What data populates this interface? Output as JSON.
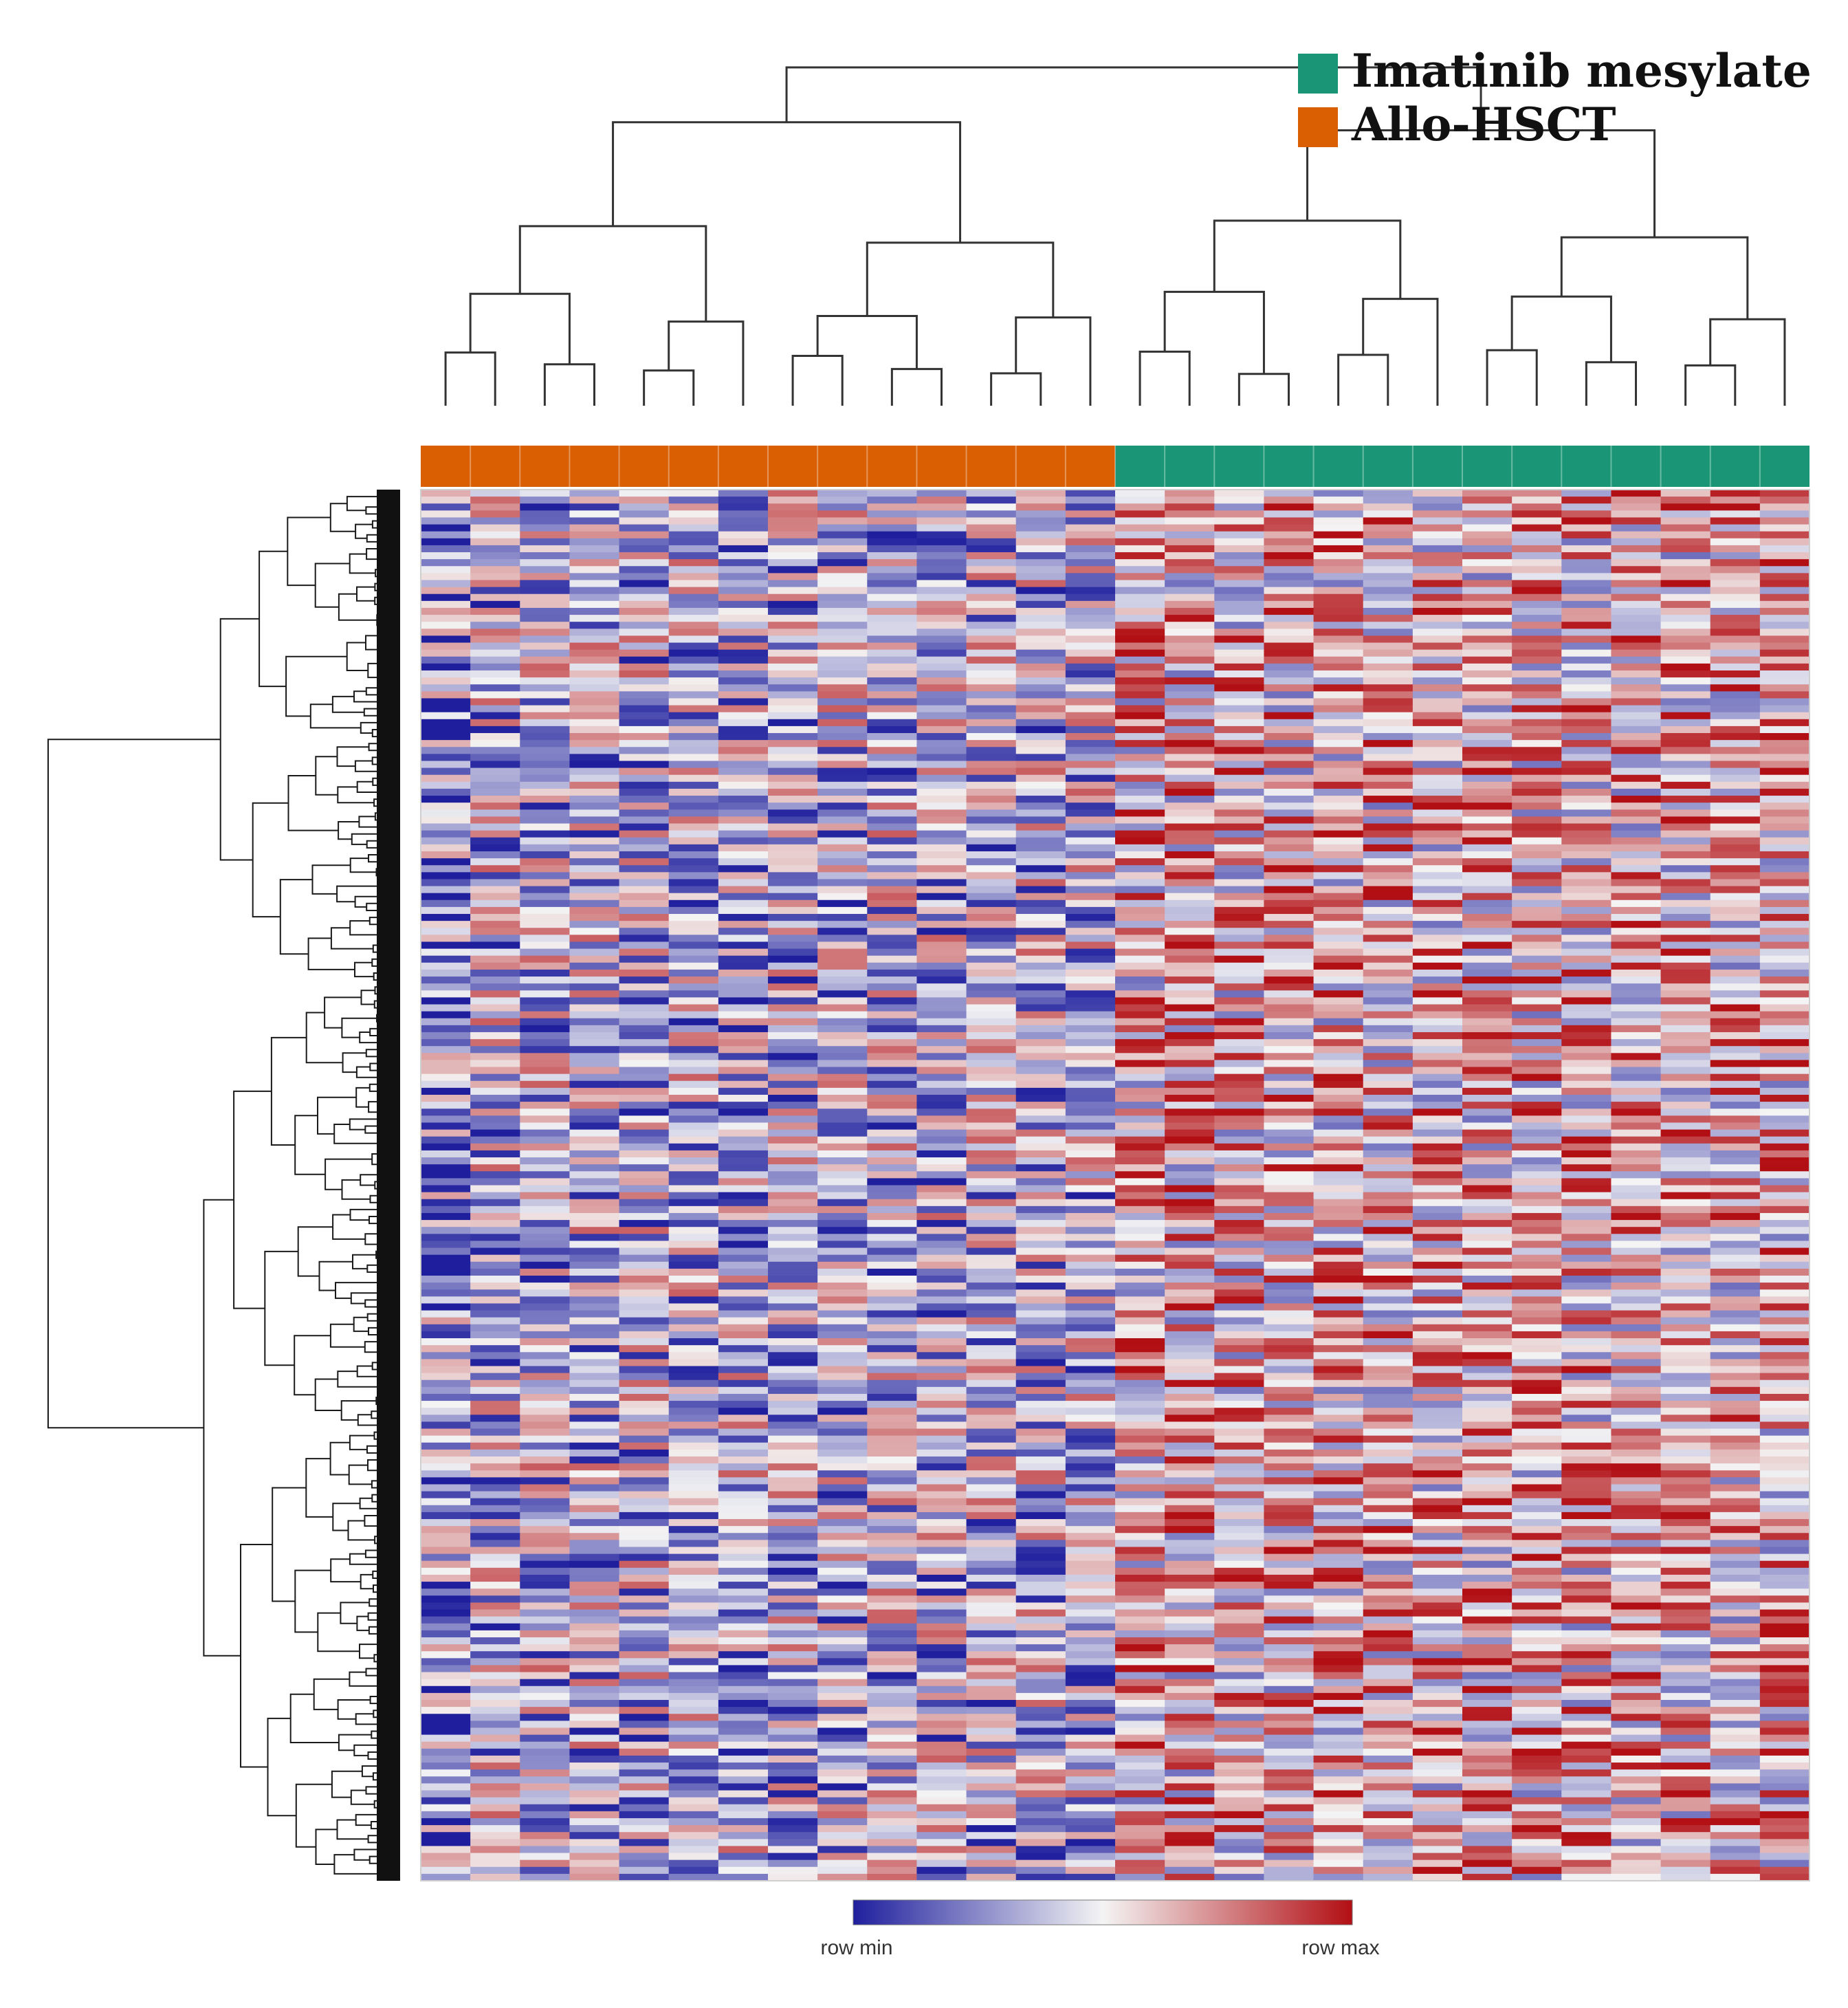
{
  "chart_data": {
    "type": "heatmap",
    "title": "",
    "legend": {
      "position": "top-right",
      "items": [
        {
          "label": "Imatinib mesylate",
          "color": "#1a9676"
        },
        {
          "label": "Allo-HSCT",
          "color": "#d95f02"
        }
      ]
    },
    "groups": [
      {
        "label": "Allo-HSCT",
        "color": "#d95f02",
        "n_columns": 14
      },
      {
        "label": "Imatinib mesylate",
        "color": "#1a9676",
        "n_columns": 14
      }
    ],
    "n_rows": 200,
    "value_range": [
      -1,
      1
    ],
    "colorscale": {
      "min_color": "#1f1f9e",
      "mid_color": "#f4f4f4",
      "max_color": "#b20f14",
      "min_label": "row min",
      "max_label": "row max"
    },
    "row_dendrogram": true,
    "column_dendrogram": true
  }
}
